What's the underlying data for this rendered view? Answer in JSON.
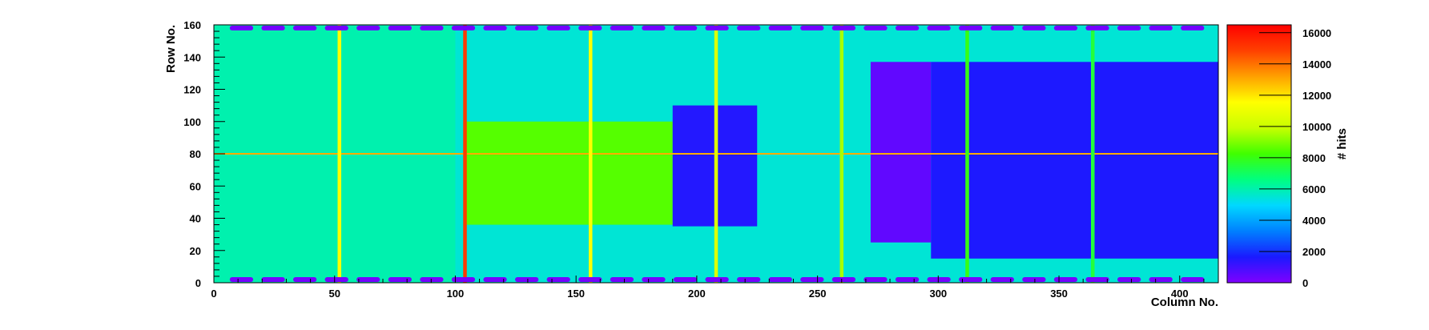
{
  "chart_data": {
    "type": "heatmap",
    "title": "",
    "xlabel": "Column No.",
    "ylabel": "Row No.",
    "zlabel": "# hits",
    "xlim": [
      0,
      416
    ],
    "ylim": [
      0,
      160
    ],
    "zlim": [
      0,
      16500
    ],
    "x_ticks": [
      0,
      50,
      100,
      150,
      200,
      250,
      300,
      350,
      400
    ],
    "y_ticks": [
      0,
      20,
      40,
      60,
      80,
      100,
      120,
      140,
      160
    ],
    "z_ticks": [
      0,
      2000,
      4000,
      6000,
      8000,
      10000,
      12000,
      14000,
      16000
    ],
    "x_tick_labels": [
      "0",
      "50",
      "100",
      "150",
      "200",
      "250",
      "300",
      "350",
      "400"
    ],
    "y_tick_labels": [
      "0",
      "20",
      "40",
      "60",
      "80",
      "100",
      "120",
      "140",
      "160"
    ],
    "z_tick_labels": [
      "0",
      "2000",
      "4000",
      "6000",
      "8000",
      "10000",
      "12000",
      "14000",
      "16000"
    ],
    "colormap": [
      "#8000ff",
      "#1a1aff",
      "#0080ff",
      "#00d8ff",
      "#00ff80",
      "#40ff00",
      "#c8ff00",
      "#ffff00",
      "#ffa000",
      "#ff4000",
      "#ff0000"
    ],
    "background_level": 5500,
    "bright_columns": [
      {
        "column": 52,
        "hits": 11500
      },
      {
        "column": 104,
        "hits": 15000
      },
      {
        "column": 156,
        "hits": 11500
      },
      {
        "column": 208,
        "hits": 10500
      },
      {
        "column": 260,
        "hits": 9500
      },
      {
        "column": 312,
        "hits": 8000
      },
      {
        "column": 364,
        "hits": 7500
      }
    ],
    "bright_rows": [
      {
        "row": 80,
        "hits": 13000,
        "from_column": 0,
        "to_column": 416
      }
    ],
    "regions": [
      {
        "name": "left-cyan-zone",
        "x": [
          0,
          100
        ],
        "y": [
          0,
          160
        ],
        "hits": 6000
      },
      {
        "name": "green-zone",
        "x": [
          104,
          190
        ],
        "y": [
          36,
          100
        ],
        "hits": 8500
      },
      {
        "name": "central-block",
        "x": [
          190,
          225
        ],
        "y": [
          35,
          110
        ],
        "hits": 1500
      },
      {
        "name": "purple-block",
        "x": [
          272,
          297
        ],
        "y": [
          25,
          137
        ],
        "hits": 500
      },
      {
        "name": "right-zone",
        "x": [
          297,
          416
        ],
        "y": [
          15,
          137
        ],
        "hits": 1600
      },
      {
        "name": "bottom-pads",
        "x": [
          5,
          412
        ],
        "y": [
          0,
          4
        ],
        "hits": 200
      },
      {
        "name": "top-pads",
        "x": [
          5,
          412
        ],
        "y": [
          156,
          160
        ],
        "hits": 200
      }
    ],
    "grid": false,
    "legend": "colorbar-right"
  }
}
